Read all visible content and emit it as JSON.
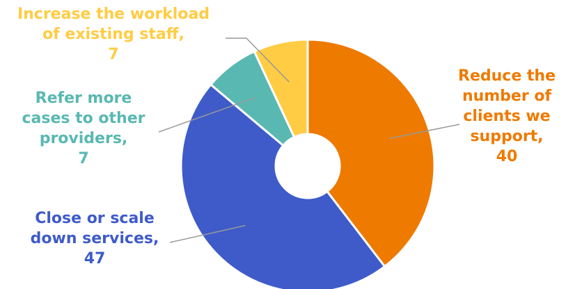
{
  "chart_data": {
    "type": "pie",
    "variant": "donut",
    "title": "",
    "slices": [
      {
        "label_lines": [
          "Reduce the",
          "number of",
          "clients we",
          "support,"
        ],
        "value": 40,
        "color": "#EE7A00"
      },
      {
        "label_lines": [
          "Close or scale",
          "down services,"
        ],
        "value": 47,
        "color": "#3F5BC9"
      },
      {
        "label_lines": [
          "Refer more",
          "cases to other",
          "providers,"
        ],
        "value": 7,
        "color": "#59B8B2"
      },
      {
        "label_lines": [
          "Increase the workload",
          "of existing staff,"
        ],
        "value": 7,
        "color": "#FFCC44"
      }
    ],
    "legend": "none",
    "data_labels": "outside with leader lines"
  }
}
